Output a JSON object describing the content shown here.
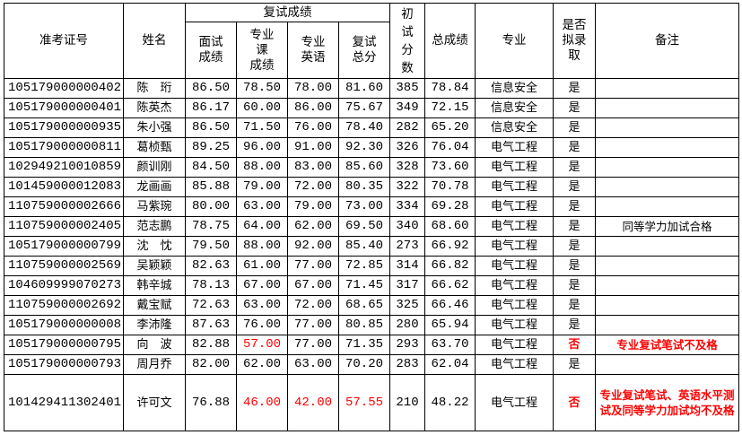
{
  "headers": {
    "id": "准考证号",
    "name": "姓名",
    "retest": "复试成绩",
    "interview": "面试\n成绩",
    "major_course": "专业\n课\n成绩",
    "major_english": "专业\n英语",
    "retest_total": "复试\n总分",
    "initial": "初\n试\n分\n数",
    "total": "总成绩",
    "major": "专业",
    "admitted": "是否\n拟录\n取",
    "remark": "备注"
  },
  "colors": {
    "fail": "#ff0000"
  },
  "rows": [
    {
      "id": "105179000000402",
      "name": "陈　珩",
      "interview": "86.50",
      "course": "78.50",
      "english": "78.00",
      "retest": "81.60",
      "initial": "385",
      "total": "78.84",
      "major": "信息安全",
      "admitted": "是",
      "remark": ""
    },
    {
      "id": "105179000000401",
      "name": "陈英杰",
      "interview": "86.17",
      "course": "60.00",
      "english": "86.00",
      "retest": "75.67",
      "initial": "349",
      "total": "72.15",
      "major": "信息安全",
      "admitted": "是",
      "remark": ""
    },
    {
      "id": "105179000000935",
      "name": "朱小强",
      "interview": "86.50",
      "course": "71.50",
      "english": "76.00",
      "retest": "78.40",
      "initial": "282",
      "total": "65.20",
      "major": "信息安全",
      "admitted": "是",
      "remark": ""
    },
    {
      "id": "105179000000811",
      "name": "葛桢甄",
      "interview": "89.25",
      "course": "96.00",
      "english": "91.00",
      "retest": "92.30",
      "initial": "326",
      "total": "76.04",
      "major": "电气工程",
      "admitted": "是",
      "remark": ""
    },
    {
      "id": "102949210010859",
      "name": "颜训刚",
      "interview": "84.50",
      "course": "88.00",
      "english": "83.00",
      "retest": "85.60",
      "initial": "328",
      "total": "73.60",
      "major": "电气工程",
      "admitted": "是",
      "remark": ""
    },
    {
      "id": "101459000012083",
      "name": "龙画画",
      "interview": "85.88",
      "course": "79.00",
      "english": "72.00",
      "retest": "80.35",
      "initial": "322",
      "total": "70.78",
      "major": "电气工程",
      "admitted": "是",
      "remark": ""
    },
    {
      "id": "110759000002666",
      "name": "马紫琬",
      "interview": "80.00",
      "course": "63.00",
      "english": "79.00",
      "retest": "73.00",
      "initial": "334",
      "total": "69.28",
      "major": "电气工程",
      "admitted": "是",
      "remark": ""
    },
    {
      "id": "110759000002405",
      "name": "范志鹏",
      "interview": "78.75",
      "course": "64.00",
      "english": "62.00",
      "retest": "69.50",
      "initial": "340",
      "total": "68.60",
      "major": "电气工程",
      "admitted": "是",
      "remark": "同等学力加试合格"
    },
    {
      "id": "105179000000799",
      "name": "沈　忱",
      "interview": "79.50",
      "course": "88.00",
      "english": "92.00",
      "retest": "85.40",
      "initial": "273",
      "total": "66.92",
      "major": "电气工程",
      "admitted": "是",
      "remark": ""
    },
    {
      "id": "110759000002569",
      "name": "吴颖颖",
      "interview": "82.63",
      "course": "61.00",
      "english": "77.00",
      "retest": "72.85",
      "initial": "314",
      "total": "66.82",
      "major": "电气工程",
      "admitted": "是",
      "remark": ""
    },
    {
      "id": "104609999070273",
      "name": "韩辛城",
      "interview": "78.13",
      "course": "67.00",
      "english": "67.00",
      "retest": "71.45",
      "initial": "317",
      "total": "66.62",
      "major": "电气工程",
      "admitted": "是",
      "remark": ""
    },
    {
      "id": "110759000002692",
      "name": "戴宝赋",
      "interview": "72.63",
      "course": "63.00",
      "english": "72.00",
      "retest": "68.65",
      "initial": "325",
      "total": "66.46",
      "major": "电气工程",
      "admitted": "是",
      "remark": ""
    },
    {
      "id": "105179000000008",
      "name": "李沛隆",
      "interview": "87.63",
      "course": "76.00",
      "english": "77.00",
      "retest": "80.85",
      "initial": "280",
      "total": "65.94",
      "major": "电气工程",
      "admitted": "是",
      "remark": ""
    },
    {
      "id": "105179000000795",
      "name": "向　波",
      "interview": "82.88",
      "course": "57.00",
      "english": "77.00",
      "retest": "71.35",
      "initial": "293",
      "total": "63.70",
      "major": "电气工程",
      "admitted": "否",
      "remark": "专业复试笔试不及格",
      "red": [
        "course",
        "admitted",
        "remark"
      ]
    },
    {
      "id": "105179000000793",
      "name": "周月乔",
      "interview": "82.00",
      "course": "62.00",
      "english": "63.00",
      "retest": "70.20",
      "initial": "283",
      "total": "62.04",
      "major": "电气工程",
      "admitted": "是",
      "remark": ""
    },
    {
      "id": "101429411302401",
      "name": "许可文",
      "interview": "76.88",
      "course": "46.00",
      "english": "42.00",
      "retest": "57.55",
      "initial": "210",
      "total": "48.22",
      "major": "电气工程",
      "admitted": "否",
      "remark": "专业复试笔试、英语水平测试及同等学力加试均不及格",
      "red": [
        "course",
        "english",
        "retest",
        "admitted",
        "remark"
      ]
    }
  ]
}
